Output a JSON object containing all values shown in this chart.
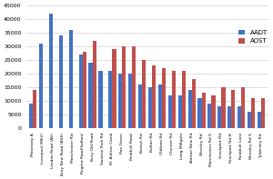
{
  "categories": [
    "Motorway A",
    "Liverpool (M62)",
    "London Road (A6)",
    "Bury New Road (A56)",
    "Manchester Rd",
    "Regent Road/Salford",
    "Bury Old Road",
    "Swinton Park Rd",
    "M. Ashton Canal",
    "Roe Green",
    "Reddish Road",
    "Barton Rd",
    "Bolton Rd",
    "Oldham Rd",
    "Chester Rd",
    "Long Millgate",
    "Ashton New Rd",
    "Worsley Rd",
    "Manchester Rd S",
    "Stockport Rd",
    "Stockport Rd N",
    "Reddish Lane",
    "Worsley Rd S",
    "Tyldesley Rd"
  ],
  "AADT": [
    9000,
    31000,
    42000,
    34000,
    36000,
    27000,
    24000,
    21000,
    21000,
    20000,
    20000,
    16000,
    15000,
    16000,
    12000,
    12000,
    14000,
    11000,
    9000,
    8000,
    8000,
    8000,
    6000,
    6000
  ],
  "AOST": [
    14000,
    0,
    0,
    0,
    0,
    28000,
    32000,
    0,
    29000,
    30000,
    30000,
    25000,
    23000,
    22000,
    21000,
    21000,
    18000,
    13000,
    12000,
    15000,
    14000,
    15000,
    11000,
    11000
  ],
  "bar_color_blue": "#4472c4",
  "bar_color_red": "#c0504d",
  "ylim": [
    0,
    45000
  ],
  "yticks": [
    0,
    5000,
    10000,
    15000,
    20000,
    25000,
    30000,
    35000,
    40000,
    45000
  ],
  "legend_AADT": "AADT",
  "legend_AOST": "AOST",
  "background_color": "#ffffff",
  "grid_color": "#d0d0d0"
}
